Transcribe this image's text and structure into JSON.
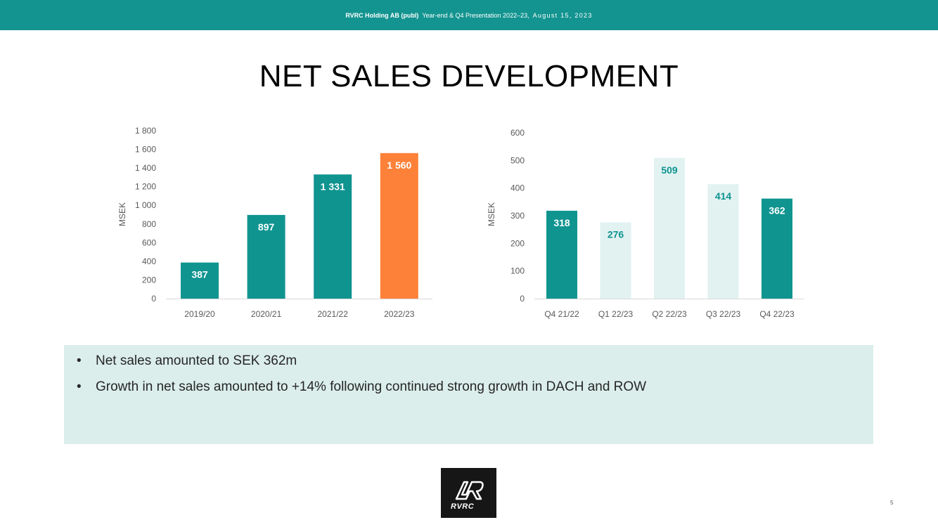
{
  "header": {
    "company": "RVRC Holding AB (publ)",
    "presentation": "Year-end & Q4 Presentation 2022–23,",
    "date": "August 15, 2023"
  },
  "title": "NET SALES DEVELOPMENT",
  "colors": {
    "teal": "#0f9490",
    "orange": "#fd8138",
    "light_teal": "#e1f2f1",
    "header": "#139490",
    "info_bg": "#dbeeeb"
  },
  "chart_data": [
    {
      "type": "bar",
      "categories": [
        "2019/20",
        "2020/21",
        "2021/22",
        "2022/23"
      ],
      "values": [
        387,
        897,
        1331,
        1560
      ],
      "data_labels": [
        "387",
        "897",
        "1 331",
        "1 560"
      ],
      "bar_colors": [
        "#0f9490",
        "#0f9490",
        "#0f9490",
        "#fd8138"
      ],
      "label_colors": [
        "#ffffff",
        "#ffffff",
        "#ffffff",
        "#ffffff"
      ],
      "ylabel": "MSEK",
      "xlabel": "",
      "ylim": [
        0,
        1800
      ],
      "yticks": [
        0,
        200,
        400,
        600,
        800,
        1000,
        1200,
        1400,
        1600,
        1800
      ],
      "ytick_labels": [
        "0",
        "200",
        "400",
        "600",
        "800",
        "1 000",
        "1 200",
        "1 400",
        "1 600",
        "1 800"
      ],
      "grid": false,
      "legend": "none"
    },
    {
      "type": "bar",
      "categories": [
        "Q4 21/22",
        "Q1 22/23",
        "Q2 22/23",
        "Q3 22/23",
        "Q4 22/23"
      ],
      "values": [
        318,
        276,
        509,
        414,
        362
      ],
      "data_labels": [
        "318",
        "276",
        "509",
        "414",
        "362"
      ],
      "bar_colors": [
        "#0f9490",
        "#e1f2f1",
        "#e1f2f1",
        "#e1f2f1",
        "#0f9490"
      ],
      "label_colors": [
        "#ffffff",
        "#0f9490",
        "#0f9490",
        "#0f9490",
        "#ffffff"
      ],
      "ylabel": "MSEK",
      "xlabel": "",
      "ylim": [
        0,
        600
      ],
      "yticks": [
        0,
        100,
        200,
        300,
        400,
        500,
        600
      ],
      "ytick_labels": [
        "0",
        "100",
        "200",
        "300",
        "400",
        "500",
        "600"
      ],
      "grid": false,
      "legend": "none"
    }
  ],
  "bullets": [
    "Net sales amounted to SEK 362m",
    "Growth in net sales amounted to +14% following continued strong growth in DACH and ROW"
  ],
  "bullet_symbol": "•",
  "logo": {
    "name": "rvrc-logo",
    "text": "RVRC"
  },
  "page_number": "5"
}
